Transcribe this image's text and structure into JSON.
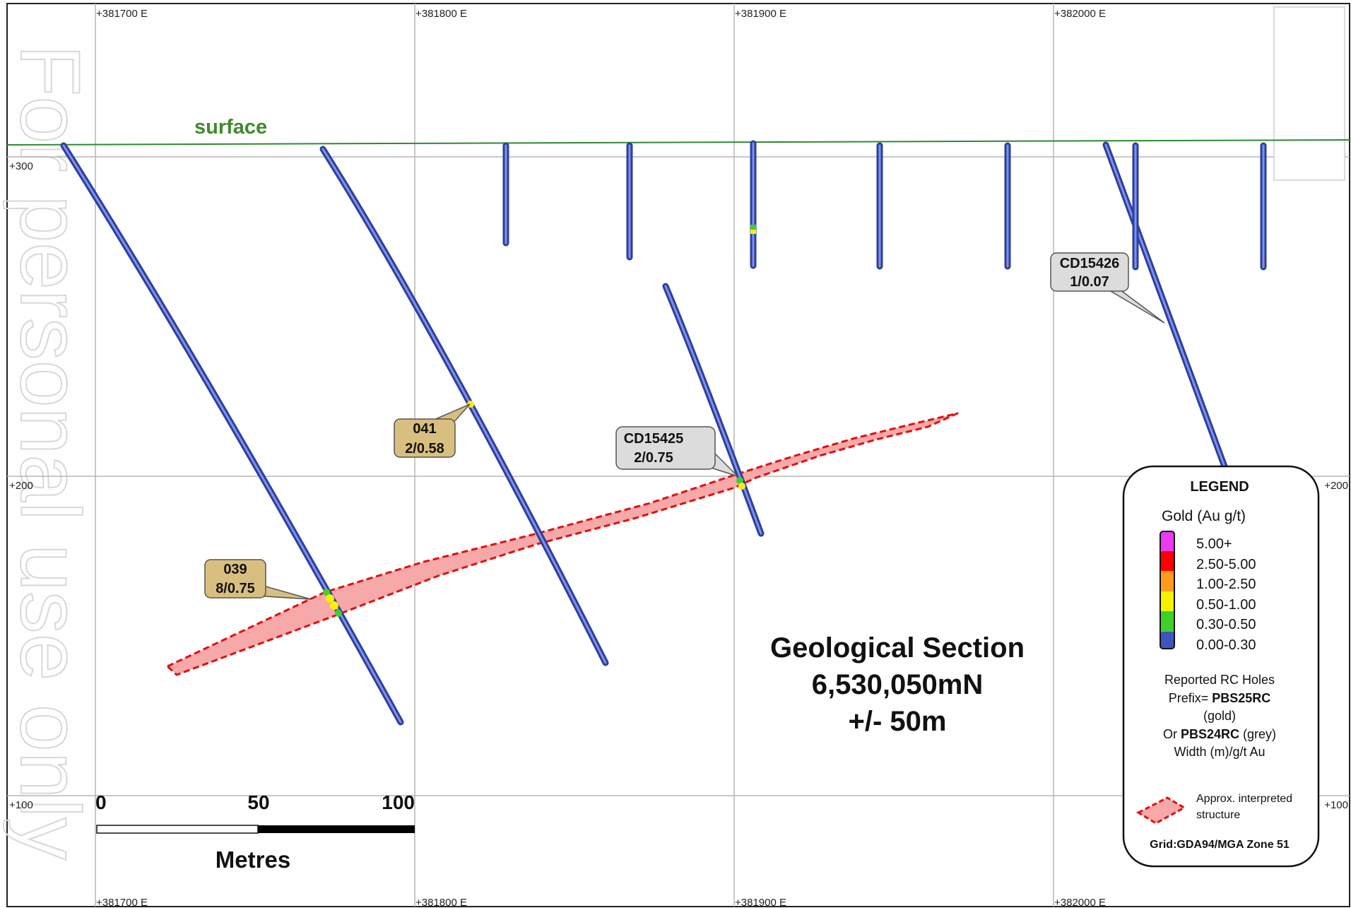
{
  "grid": {
    "easting_labels": [
      "+381700 E",
      "+381800 E",
      "+381900 E",
      "+382000 E"
    ],
    "rl_labels": [
      "+300",
      "+200",
      "+100"
    ]
  },
  "surface_label": "surface",
  "watermark": "For personal use only",
  "callouts": {
    "h039": {
      "line1": "039",
      "line2": "8/0.75"
    },
    "h041": {
      "line1": "041",
      "line2": "2/0.58"
    },
    "cd15425": {
      "line1": "CD15425",
      "line2": "2/0.75"
    },
    "cd15426": {
      "line1": "CD15426",
      "line2": "1/0.07"
    }
  },
  "title": {
    "line1": "Geological Section",
    "line2": "6,530,050mN",
    "line3": "+/- 50m"
  },
  "scale_bar": {
    "tick_0": "0",
    "tick_50": "50",
    "tick_100": "100",
    "unit": "Metres"
  },
  "legend": {
    "title": "LEGEND",
    "subtitle": "Gold (Au g/t)",
    "classes": [
      {
        "label": "5.00+",
        "color": "#e93bf0"
      },
      {
        "label": "2.50-5.00",
        "color": "#ff0000"
      },
      {
        "label": "1.00-2.50",
        "color": "#ff9a1f"
      },
      {
        "label": "0.50-1.00",
        "color": "#f7f200"
      },
      {
        "label": "0.30-0.50",
        "color": "#3fd12a"
      },
      {
        "label": "0.00-0.30",
        "color": "#3e55c0"
      }
    ],
    "reported_1": "Reported RC Holes",
    "reported_2_prefix": "Prefix=",
    "reported_2_bold": "PBS25RC",
    "reported_3": "(gold)",
    "reported_4_prefix": "Or",
    "reported_4_bold": "PBS24RC",
    "reported_4_suffix": "(grey)",
    "reported_5": "Width (m)/g/t Au",
    "structure_1": "Approx. interpreted",
    "structure_2": "structure",
    "grid_note": "Grid:GDA94/MGA Zone 51"
  },
  "colors": {
    "hole": "#3e55c0",
    "surface": "#2e8b2e",
    "structure_fill": "#f7a8a8",
    "structure_line": "#e01010",
    "callout_gold": "#d9bf7f",
    "callout_grey": "#dcdcdc"
  }
}
